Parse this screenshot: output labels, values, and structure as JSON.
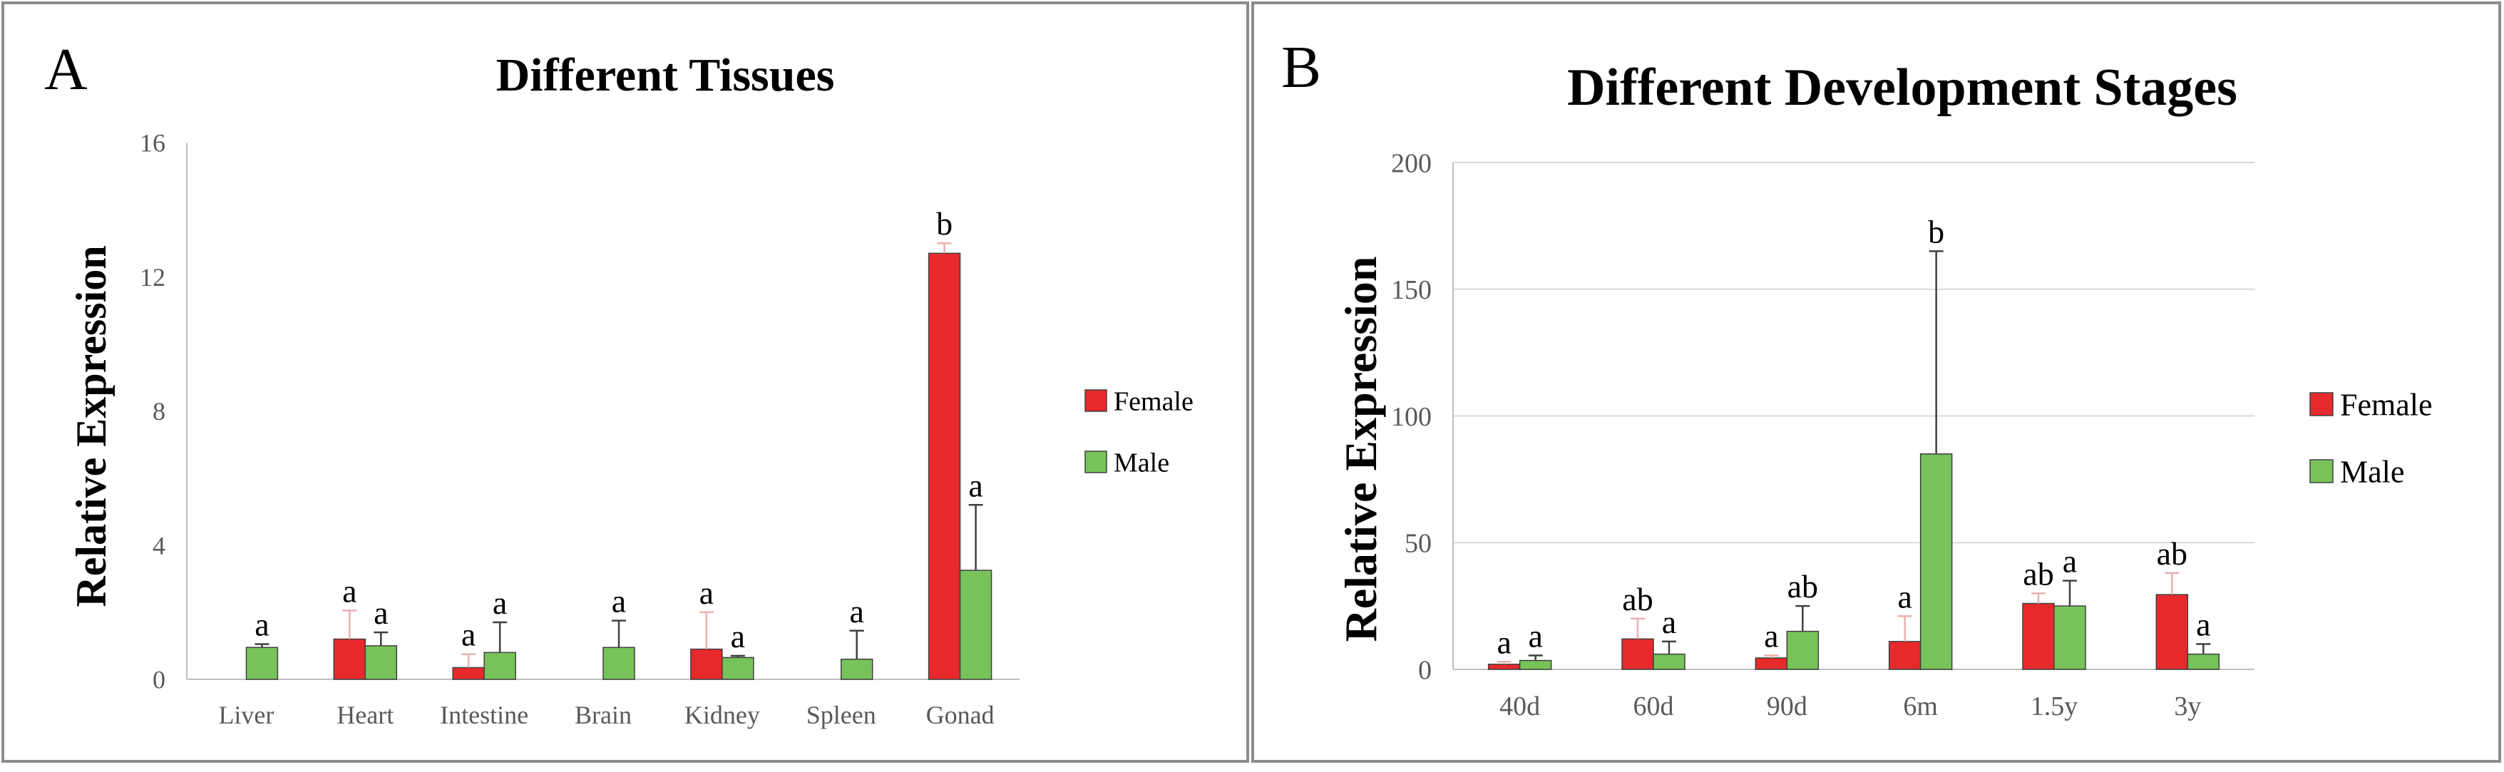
{
  "chart_data": [
    {
      "type": "bar",
      "panel_label": "A",
      "title": "Different Tissues",
      "xlabel": "",
      "ylabel": "Relative Expression",
      "ylim": [
        0,
        16
      ],
      "yticks": [
        0,
        4,
        8,
        12,
        16
      ],
      "grid": false,
      "legend_position": "right",
      "categories": [
        "Liver",
        "Heart",
        "Intestine",
        "Brain",
        "Kidney",
        "Spleen",
        "Gonad"
      ],
      "series": [
        {
          "name": "Female",
          "color": "#e8292b",
          "values": [
            0,
            1.2,
            0.35,
            0,
            0.9,
            0,
            12.7
          ],
          "errors": [
            0,
            0.85,
            0.4,
            0,
            1.1,
            0,
            0.3
          ],
          "labels": [
            "",
            "a",
            "a",
            "",
            "a",
            "",
            "b"
          ]
        },
        {
          "name": "Male",
          "color": "#77c35a",
          "values": [
            0.95,
            1.0,
            0.8,
            0.95,
            0.65,
            0.6,
            3.25
          ],
          "errors": [
            0.1,
            0.4,
            0.9,
            0.8,
            0.05,
            0.85,
            1.95
          ],
          "labels": [
            "a",
            "a",
            "a",
            "a",
            "a",
            "a",
            "a"
          ]
        }
      ]
    },
    {
      "type": "bar",
      "panel_label": "B",
      "title": "Different Development Stages",
      "xlabel": "",
      "ylabel": "Relative Expression",
      "ylim": [
        0,
        200
      ],
      "yticks": [
        0,
        50,
        100,
        150,
        200
      ],
      "grid": true,
      "legend_position": "right",
      "categories": [
        "40d",
        "60d",
        "90d",
        "6m",
        "1.5y",
        "3y"
      ],
      "series": [
        {
          "name": "Female",
          "color": "#e8292b",
          "values": [
            2,
            12,
            4.5,
            11,
            26,
            29.5
          ],
          "errors": [
            1,
            8,
            1,
            10,
            4,
            8.5
          ],
          "labels": [
            "a",
            "ab",
            "a",
            "a",
            "ab",
            "ab"
          ]
        },
        {
          "name": "Male",
          "color": "#77c35a",
          "values": [
            3.5,
            6,
            15,
            85,
            25,
            6
          ],
          "errors": [
            2,
            5,
            10,
            80,
            10,
            4
          ],
          "labels": [
            "a",
            "a",
            "ab",
            "b",
            "a",
            "a"
          ]
        }
      ]
    }
  ]
}
